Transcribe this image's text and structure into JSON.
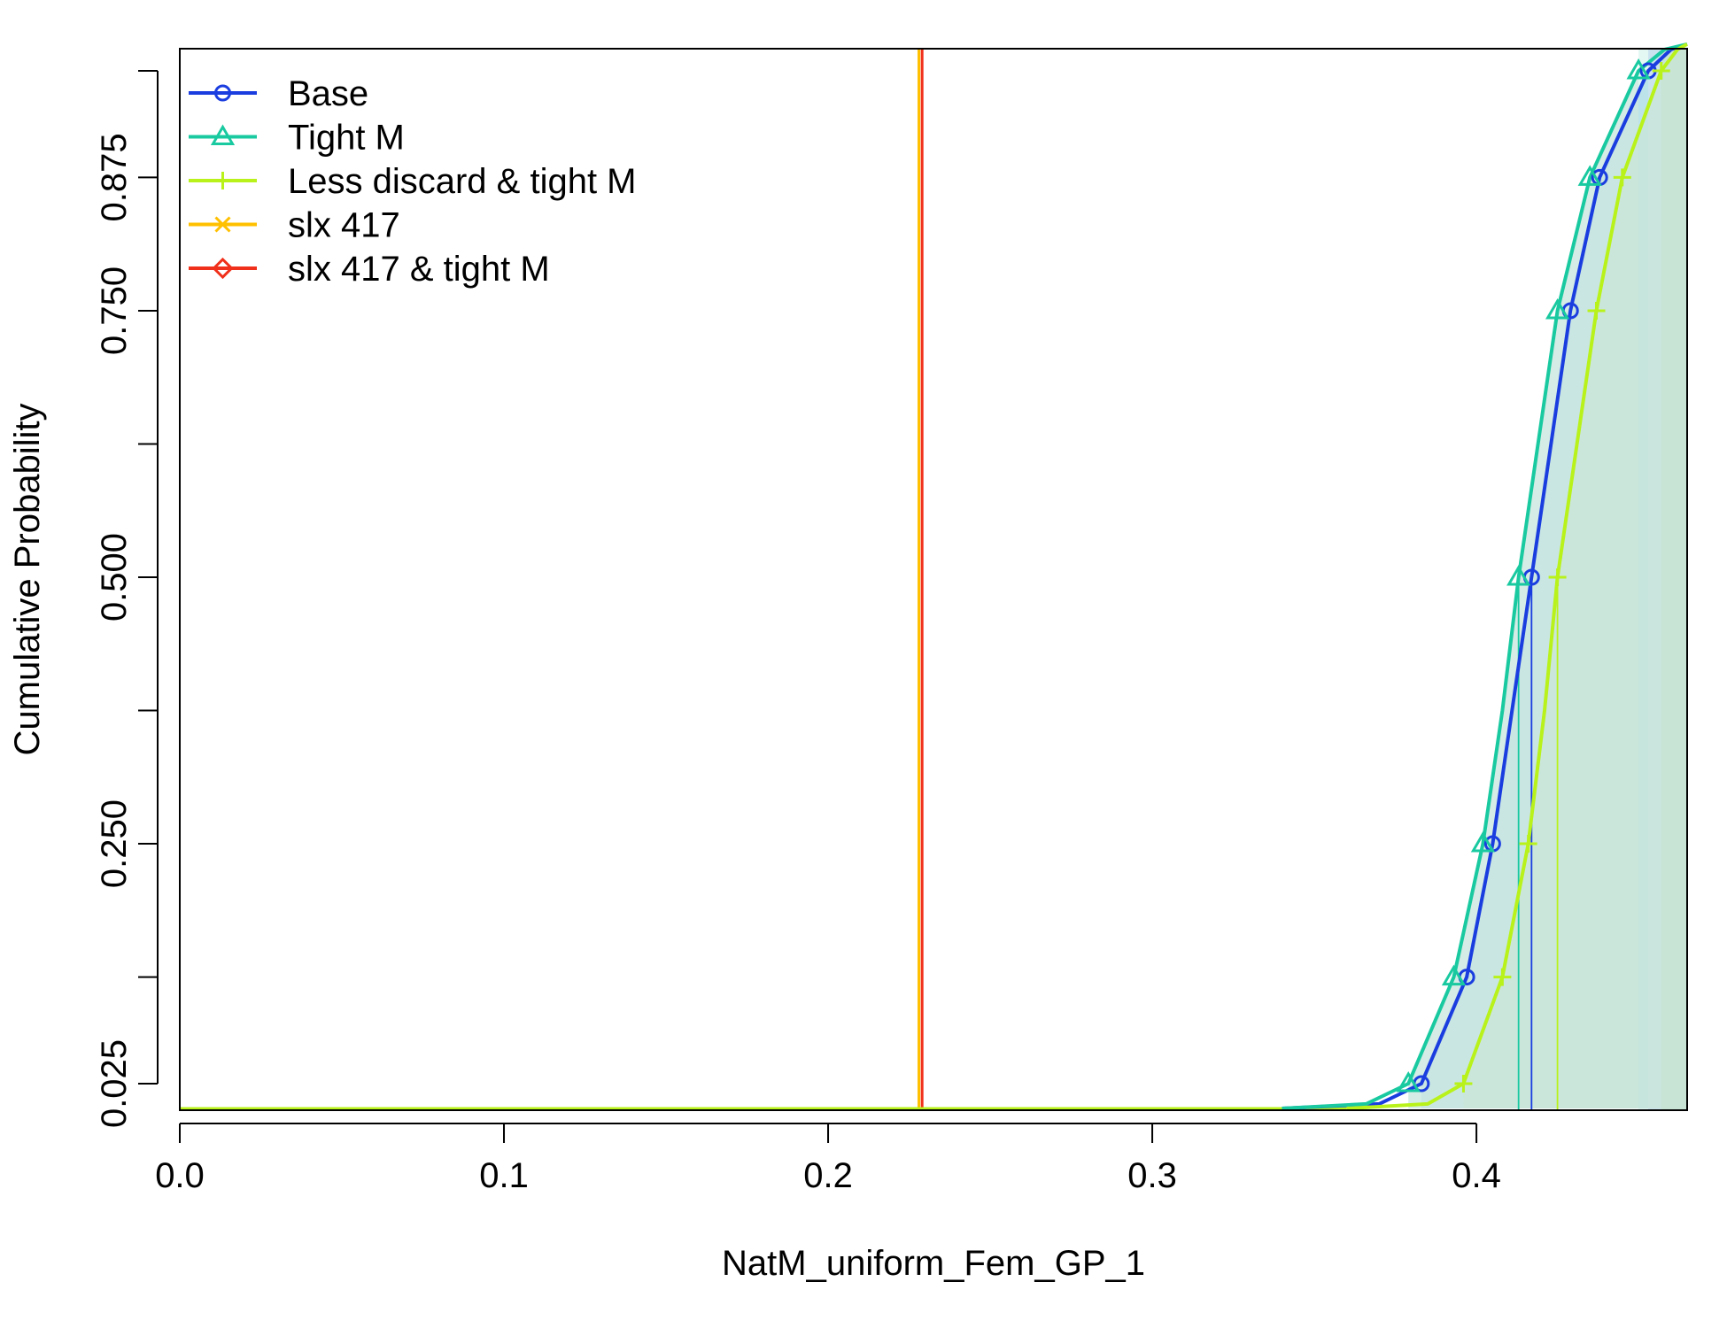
{
  "chart_data": {
    "type": "line",
    "title": "",
    "xlabel": "NatM_uniform_Fem_GP_1",
    "ylabel": "Cumulative Probability",
    "xlim": [
      0.0,
      0.465
    ],
    "ylim": [
      0.0,
      1.0
    ],
    "x_ticks": [
      0.0,
      0.1,
      0.2,
      0.3,
      0.4
    ],
    "x_tick_labels": [
      "0.0",
      "0.1",
      "0.2",
      "0.3",
      "0.4"
    ],
    "y_ticks": [
      0.025,
      0.125,
      0.25,
      0.375,
      0.5,
      0.625,
      0.75,
      0.875,
      0.975
    ],
    "y_tick_labels": [
      "0.025",
      "",
      "0.250",
      "",
      "0.500",
      "",
      "0.750",
      "0.875",
      ""
    ],
    "grid": false,
    "legend_position": "top-left",
    "series": [
      {
        "name": "Base",
        "color": "#1a3de0",
        "marker": "circle",
        "marker_points": [
          [
            0.383,
            0.025
          ],
          [
            0.397,
            0.125
          ],
          [
            0.405,
            0.25
          ],
          [
            0.417,
            0.5
          ],
          [
            0.429,
            0.75
          ],
          [
            0.438,
            0.875
          ],
          [
            0.453,
            0.975
          ]
        ],
        "median": 0.417,
        "fill": "#c5dff2",
        "cdf": [
          [
            0.34,
            0.0
          ],
          [
            0.37,
            0.006
          ],
          [
            0.383,
            0.025
          ],
          [
            0.397,
            0.125
          ],
          [
            0.405,
            0.25
          ],
          [
            0.411,
            0.375
          ],
          [
            0.417,
            0.5
          ],
          [
            0.423,
            0.625
          ],
          [
            0.429,
            0.75
          ],
          [
            0.438,
            0.875
          ],
          [
            0.453,
            0.975
          ],
          [
            0.46,
            0.995
          ],
          [
            0.465,
            1.0
          ]
        ]
      },
      {
        "name": "Tight M",
        "color": "#19c9a0",
        "marker": "triangle",
        "marker_points": [
          [
            0.379,
            0.025
          ],
          [
            0.393,
            0.125
          ],
          [
            0.402,
            0.25
          ],
          [
            0.413,
            0.5
          ],
          [
            0.425,
            0.75
          ],
          [
            0.435,
            0.875
          ],
          [
            0.45,
            0.975
          ]
        ],
        "median": 0.413,
        "fill": "#c6e6dc",
        "cdf": [
          [
            0.34,
            0.0
          ],
          [
            0.366,
            0.006
          ],
          [
            0.379,
            0.025
          ],
          [
            0.393,
            0.125
          ],
          [
            0.402,
            0.25
          ],
          [
            0.408,
            0.375
          ],
          [
            0.413,
            0.5
          ],
          [
            0.419,
            0.625
          ],
          [
            0.425,
            0.75
          ],
          [
            0.435,
            0.875
          ],
          [
            0.45,
            0.975
          ],
          [
            0.458,
            0.995
          ],
          [
            0.465,
            1.0
          ]
        ]
      },
      {
        "name": "Less discard & tight M",
        "color": "#b8f21a",
        "marker": "plus",
        "marker_points": [
          [
            0.396,
            0.025
          ],
          [
            0.408,
            0.125
          ],
          [
            0.416,
            0.25
          ],
          [
            0.425,
            0.5
          ],
          [
            0.437,
            0.75
          ],
          [
            0.445,
            0.875
          ],
          [
            0.457,
            0.975
          ]
        ],
        "median": 0.425,
        "fill": "#c9e6d8",
        "cdf": [
          [
            0.36,
            0.0
          ],
          [
            0.385,
            0.006
          ],
          [
            0.396,
            0.025
          ],
          [
            0.408,
            0.125
          ],
          [
            0.416,
            0.25
          ],
          [
            0.421,
            0.375
          ],
          [
            0.425,
            0.5
          ],
          [
            0.431,
            0.625
          ],
          [
            0.437,
            0.75
          ],
          [
            0.445,
            0.875
          ],
          [
            0.457,
            0.975
          ],
          [
            0.462,
            0.995
          ],
          [
            0.465,
            1.0
          ]
        ]
      },
      {
        "name": "slx 417",
        "color": "#ffc000",
        "marker": "x",
        "marker_points": [],
        "median": 0.228,
        "vertical_at": 0.228
      },
      {
        "name": "slx 417 & tight M",
        "color": "#f0301a",
        "marker": "diamond",
        "marker_points": [],
        "median": 0.229,
        "vertical_at": 0.229
      }
    ]
  }
}
